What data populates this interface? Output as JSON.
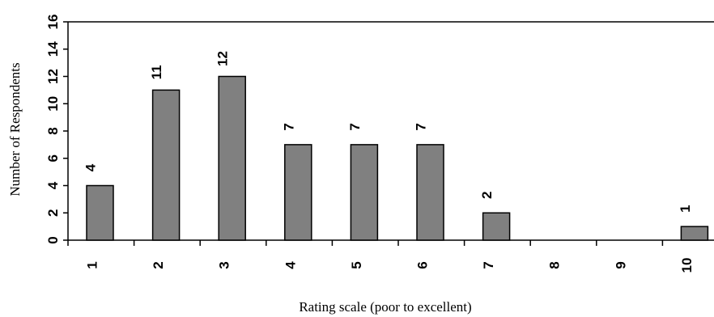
{
  "chart_data": {
    "type": "bar",
    "title": "",
    "xlabel": "Rating scale (poor to excellent)",
    "ylabel": "Number of Respondents",
    "categories": [
      "1",
      "2",
      "3",
      "4",
      "5",
      "6",
      "7",
      "8",
      "9",
      "10"
    ],
    "values": [
      4,
      11,
      12,
      7,
      7,
      7,
      2,
      0,
      0,
      1
    ],
    "data_labels": [
      "4",
      "11",
      "12",
      "7",
      "7",
      "7",
      "2",
      "",
      "",
      "1"
    ],
    "yticks": [
      "0",
      "2",
      "4",
      "6",
      "8",
      "10",
      "12",
      "14",
      "16"
    ],
    "ylim": [
      0,
      16
    ],
    "grid": false,
    "legend": "none",
    "colors": {
      "bar_fill": "#808080",
      "bar_stroke": "#000000",
      "axis": "#000000",
      "frame": "#000000"
    }
  }
}
